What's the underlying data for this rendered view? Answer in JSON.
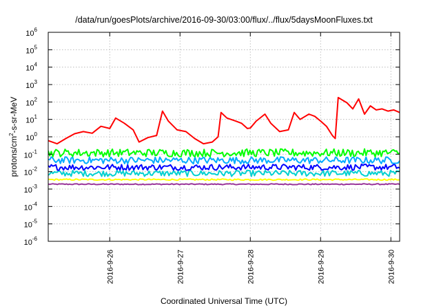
{
  "chart_data": {
    "type": "line",
    "title": "/data/run/goesPlots/archive/2016-09-30/03:00/flux/../flux/5daysMoonFluxes.txt",
    "xlabel": "Coordinated Universal Time (UTC)",
    "ylabel": "protons/cm2-s-sr-MeV",
    "ylabel_parts": {
      "pre": "protons/cm",
      "sup": "2",
      "post": "-s-sr-MeV"
    },
    "yscale": "log",
    "ylim_exp": [
      -6,
      6
    ],
    "y_ticks": [
      {
        "base": "10",
        "exp": "-6"
      },
      {
        "base": "10",
        "exp": "-5"
      },
      {
        "base": "10",
        "exp": "-4"
      },
      {
        "base": "10",
        "exp": "-3"
      },
      {
        "base": "10",
        "exp": "-2"
      },
      {
        "base": "10",
        "exp": "-1"
      },
      {
        "base": "10",
        "exp": "0"
      },
      {
        "base": "10",
        "exp": "1"
      },
      {
        "base": "10",
        "exp": "2"
      },
      {
        "base": "10",
        "exp": "3"
      },
      {
        "base": "10",
        "exp": "4"
      },
      {
        "base": "10",
        "exp": "5"
      },
      {
        "base": "10",
        "exp": "6"
      }
    ],
    "x_ticks": [
      "2016-9-26",
      "2016-9-27",
      "2016-9-28",
      "2016-9-29",
      "2016-9-30"
    ],
    "xlim": [
      "2016-09-25 03:00",
      "2016-09-30 03:00"
    ],
    "grid": true,
    "series": [
      {
        "color": "#ff0000",
        "points": [
          [
            "2016-09-25 03:00",
            0.6
          ],
          [
            "2016-09-25 06:00",
            0.4
          ],
          [
            "2016-09-25 09:00",
            0.8
          ],
          [
            "2016-09-25 12:00",
            1.5
          ],
          [
            "2016-09-25 15:00",
            2.0
          ],
          [
            "2016-09-25 18:00",
            1.6
          ],
          [
            "2016-09-25 21:00",
            4.0
          ],
          [
            "2016-09-26 00:00",
            3.0
          ],
          [
            "2016-09-26 02:00",
            12.0
          ],
          [
            "2016-09-26 05:00",
            6.0
          ],
          [
            "2016-09-26 08:00",
            2.5
          ],
          [
            "2016-09-26 10:00",
            0.5
          ],
          [
            "2016-09-26 13:00",
            0.9
          ],
          [
            "2016-09-26 16:00",
            1.2
          ],
          [
            "2016-09-26 18:00",
            30.0
          ],
          [
            "2016-09-26 20:00",
            8.0
          ],
          [
            "2016-09-26 23:00",
            2.5
          ],
          [
            "2016-09-27 02:00",
            2.0
          ],
          [
            "2016-09-27 05:00",
            0.8
          ],
          [
            "2016-09-27 08:00",
            0.4
          ],
          [
            "2016-09-27 11:00",
            0.5
          ],
          [
            "2016-09-27 13:00",
            1.0
          ],
          [
            "2016-09-27 14:00",
            25.0
          ],
          [
            "2016-09-27 16:00",
            12.0
          ],
          [
            "2016-09-27 19:00",
            8.0
          ],
          [
            "2016-09-27 21:00",
            6.0
          ],
          [
            "2016-09-27 23:00",
            3.0
          ],
          [
            "2016-09-28 00:00",
            3.2
          ],
          [
            "2016-09-28 02:00",
            8.0
          ],
          [
            "2016-09-28 05:00",
            20.0
          ],
          [
            "2016-09-28 07:00",
            6.0
          ],
          [
            "2016-09-28 10:00",
            2.0
          ],
          [
            "2016-09-28 13:00",
            2.5
          ],
          [
            "2016-09-28 15:00",
            25.0
          ],
          [
            "2016-09-28 17:00",
            10.0
          ],
          [
            "2016-09-28 20:00",
            20.0
          ],
          [
            "2016-09-28 22:00",
            15.0
          ],
          [
            "2016-09-29 00:00",
            8.0
          ],
          [
            "2016-09-29 02:00",
            4.0
          ],
          [
            "2016-09-29 04:00",
            1.2
          ],
          [
            "2016-09-29 05:00",
            0.8
          ],
          [
            "2016-09-29 06:00",
            180.0
          ],
          [
            "2016-09-29 09:00",
            90.0
          ],
          [
            "2016-09-29 11:00",
            40.0
          ],
          [
            "2016-09-29 13:00",
            150.0
          ],
          [
            "2016-09-29 15:00",
            20.0
          ],
          [
            "2016-09-29 17:00",
            60.0
          ],
          [
            "2016-09-29 19:00",
            35.0
          ],
          [
            "2016-09-29 21:00",
            40.0
          ],
          [
            "2016-09-29 23:00",
            30.0
          ],
          [
            "2016-09-30 01:00",
            35.0
          ],
          [
            "2016-09-30 03:00",
            25.0
          ]
        ]
      },
      {
        "color": "#00ff00",
        "level": 0.12,
        "spread": 0.45
      },
      {
        "color": "#00aaff",
        "level": 0.045,
        "spread": 0.4
      },
      {
        "color": "#0000ff",
        "level": 0.018,
        "spread": 0.35
      },
      {
        "color": "#00d0d0",
        "level": 0.008,
        "spread": 0.35
      },
      {
        "color": "#ffff00",
        "level": 0.0035,
        "spread": 0.08
      },
      {
        "color": "#993399",
        "level": 0.0019,
        "spread": 0.06
      }
    ]
  }
}
